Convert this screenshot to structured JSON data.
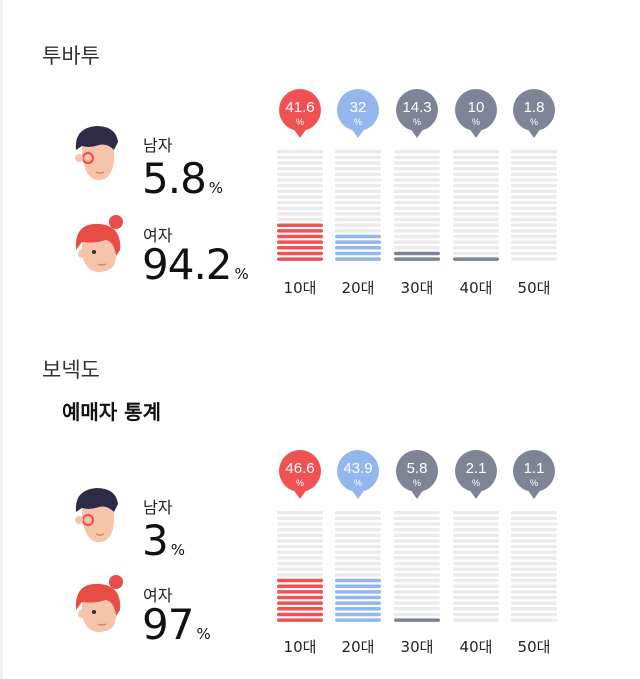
{
  "colors": {
    "red": "#f05254",
    "blue": "#93b6ec",
    "gray": "#7e8496",
    "empty": "#ebebeb",
    "hair_male": "#2c2c47",
    "skin": "#f6c4a8",
    "hair_female": "#e74c46"
  },
  "sections": [
    {
      "subtitle": "투바투",
      "male": {
        "label": "남자",
        "value": "5.8",
        "unit": "%"
      },
      "female": {
        "label": "여자",
        "value": "94.2",
        "unit": "%"
      },
      "male_icon": "male-face-icon",
      "female_icon": "female-face-icon"
    },
    {
      "subtitle": "보넥도",
      "heading": "예매자 통계",
      "male": {
        "label": "남자",
        "value": "3",
        "unit": "%"
      },
      "female": {
        "label": "여자",
        "value": "97",
        "unit": "%"
      },
      "male_icon": "male-face-icon",
      "female_icon": "female-face-icon"
    }
  ],
  "chart_data": [
    {
      "type": "bar",
      "categories": [
        "10대",
        "20대",
        "30대",
        "40대",
        "50대"
      ],
      "values": [
        41.6,
        32,
        14.3,
        10,
        1.8
      ],
      "value_labels": [
        "41.6",
        "32",
        "14.3",
        "10",
        "1.8"
      ],
      "unit": "%",
      "ylim": [
        0,
        100
      ],
      "bar_colors": [
        "#f05254",
        "#93b6ec",
        "#7e8496",
        "#7e8496",
        "#7e8496"
      ],
      "filled_lines": [
        7,
        5,
        2,
        1,
        0
      ]
    },
    {
      "type": "bar",
      "categories": [
        "10대",
        "20대",
        "30대",
        "40대",
        "50대"
      ],
      "values": [
        46.6,
        43.9,
        5.8,
        2.1,
        1.1
      ],
      "value_labels": [
        "46.6",
        "43.9",
        "5.8",
        "2.1",
        "1.1"
      ],
      "unit": "%",
      "ylim": [
        0,
        100
      ],
      "bar_colors": [
        "#f05254",
        "#93b6ec",
        "#7e8496",
        "#7e8496",
        "#7e8496"
      ],
      "filled_lines": [
        8,
        8,
        1,
        0,
        0
      ]
    }
  ]
}
